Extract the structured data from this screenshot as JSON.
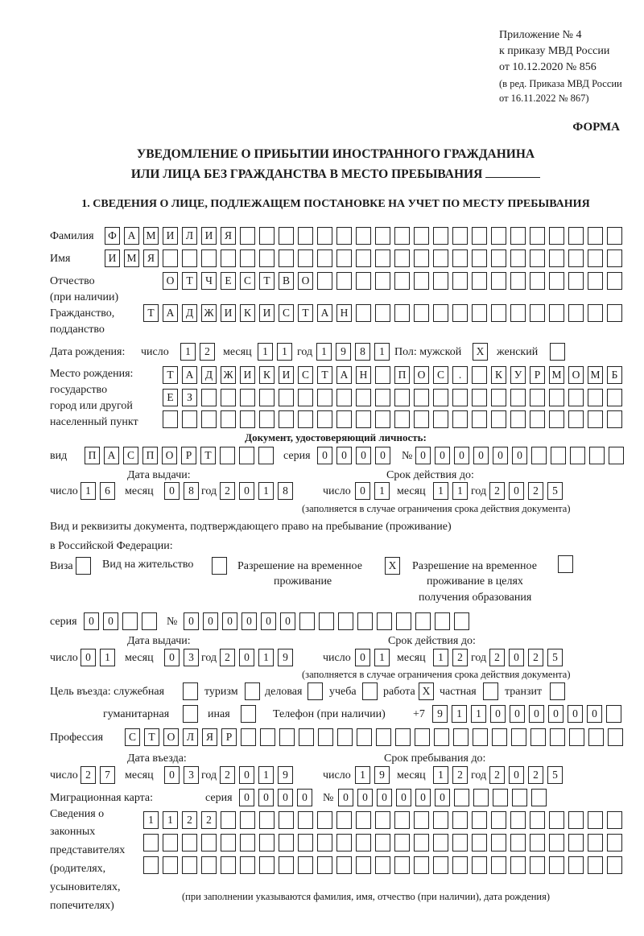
{
  "header": {
    "appendix": "Приложение № 4",
    "order": "к приказу МВД России",
    "order_date": "от 10.12.2020 № 856",
    "revision1": "(в ред. Приказа МВД России",
    "revision2": "от 16.11.2022 № 867)",
    "form": "ФОРМА",
    "title1": "УВЕДОМЛЕНИЕ О ПРИБЫТИИ ИНОСТРАННОГО ГРАЖДАНИНА",
    "title2": "ИЛИ ЛИЦА БЕЗ ГРАЖДАНСТВА В МЕСТО ПРЕБЫВАНИЯ",
    "section1": "1. СВЕДЕНИЯ О ЛИЦЕ, ПОДЛЕЖАЩЕМ ПОСТАНОВКЕ НА УЧЕТ ПО МЕСТУ ПРЕБЫВАНИЯ"
  },
  "labels": {
    "surname": "Фамилия",
    "name": "Имя",
    "patronymic": "Отчество",
    "if_any": "(при наличии)",
    "citizenship": "Гражданство,",
    "subject": "подданство",
    "birth_date": "Дата рождения:",
    "day": "число",
    "month": "месяц",
    "year": "год",
    "sex_male": "Пол: мужской",
    "sex_female": "женский",
    "birth_place": "Место рождения:",
    "state": "государство",
    "city": "город или другой",
    "settlement": "населенный пункт",
    "id_doc": "Документ, удостоверяющий личность:",
    "kind": "вид",
    "series": "серия",
    "number": "№",
    "issue_date": "Дата выдачи:",
    "valid_until": "Срок действия до:",
    "validity_note": "(заполняется в случае ограничения срока действия документа)",
    "residence_doc1": "Вид и реквизиты документа, подтверждающего право на пребывание (проживание)",
    "residence_doc2": "в Российской Федерации:",
    "visa": "Виза",
    "residence_permit": "Вид на жительство",
    "temp_permit1": "Разрешение на временное",
    "temp_permit2": "проживание",
    "edu_permit1": "Разрешение на временное",
    "edu_permit2": "проживание в целях",
    "edu_permit3": "получения образования",
    "purpose": "Цель въезда: служебная",
    "tourism": "туризм",
    "business": "деловая",
    "study": "учеба",
    "work": "работа",
    "private": "частная",
    "transit": "транзит",
    "humanitarian": "гуманитарная",
    "other": "иная",
    "phone": "Телефон (при наличии)",
    "phone_prefix": "+7",
    "profession": "Профессия",
    "entry_date": "Дата въезда:",
    "stay_until": "Срок пребывания до:",
    "migration_card": "Миграционная карта:",
    "reps1": "Сведения о",
    "reps2": "законных",
    "reps3": "представителях",
    "reps4": "(родителях,",
    "reps5": "усыновителях,",
    "reps6": "попечителях)",
    "reps_note": "(при заполнении указываются фамилия, имя, отчество (при наличии), дата рождения)"
  },
  "fields": {
    "surname": [
      "Ф",
      "А",
      "М",
      "И",
      "Л",
      "И",
      "Я",
      "",
      "",
      "",
      "",
      "",
      "",
      "",
      "",
      "",
      "",
      "",
      "",
      "",
      "",
      "",
      "",
      "",
      "",
      "",
      ""
    ],
    "name": [
      "И",
      "М",
      "Я",
      "",
      "",
      "",
      "",
      "",
      "",
      "",
      "",
      "",
      "",
      "",
      "",
      "",
      "",
      "",
      "",
      "",
      "",
      "",
      "",
      "",
      "",
      "",
      ""
    ],
    "patronymic": [
      "О",
      "Т",
      "Ч",
      "Е",
      "С",
      "Т",
      "В",
      "О",
      "",
      "",
      "",
      "",
      "",
      "",
      "",
      "",
      "",
      "",
      "",
      "",
      "",
      "",
      "",
      ""
    ],
    "citizenship": [
      "Т",
      "А",
      "Д",
      "Ж",
      "И",
      "К",
      "И",
      "С",
      "Т",
      "А",
      "Н",
      "",
      "",
      "",
      "",
      "",
      "",
      "",
      "",
      "",
      "",
      "",
      "",
      "",
      ""
    ],
    "birth_day": [
      "1",
      "2"
    ],
    "birth_month": [
      "1",
      "1"
    ],
    "birth_year": [
      "1",
      "9",
      "8",
      "1"
    ],
    "sex_male": "X",
    "sex_female": "",
    "birth_place_1": [
      "Т",
      "А",
      "Д",
      "Ж",
      "И",
      "К",
      "И",
      "С",
      "Т",
      "А",
      "Н",
      "",
      "П",
      "О",
      "С",
      ".",
      "",
      "К",
      "У",
      "Р",
      "М",
      "О",
      "М",
      "Б"
    ],
    "birth_place_2": [
      "Е",
      "З",
      "",
      "",
      "",
      "",
      "",
      "",
      "",
      "",
      "",
      "",
      "",
      "",
      "",
      "",
      "",
      "",
      "",
      "",
      "",
      "",
      "",
      ""
    ],
    "birth_place_3": [
      "",
      "",
      "",
      "",
      "",
      "",
      "",
      "",
      "",
      "",
      "",
      "",
      "",
      "",
      "",
      "",
      "",
      "",
      "",
      "",
      "",
      "",
      "",
      ""
    ],
    "id_kind": [
      "П",
      "А",
      "С",
      "П",
      "О",
      "Р",
      "Т",
      "",
      "",
      ""
    ],
    "id_series": [
      "0",
      "0",
      "0",
      "0"
    ],
    "id_number": [
      "0",
      "0",
      "0",
      "0",
      "0",
      "0",
      "",
      "",
      "",
      "",
      ""
    ],
    "id_issue_day": [
      "1",
      "6"
    ],
    "id_issue_month": [
      "0",
      "8"
    ],
    "id_issue_year": [
      "2",
      "0",
      "1",
      "8"
    ],
    "id_valid_day": [
      "0",
      "1"
    ],
    "id_valid_month": [
      "1",
      "1"
    ],
    "id_valid_year": [
      "2",
      "0",
      "2",
      "5"
    ],
    "visa": "",
    "residence_permit": "",
    "temp_permit": "X",
    "edu_permit": "",
    "res_series": [
      "0",
      "0",
      "",
      ""
    ],
    "res_number": [
      "0",
      "0",
      "0",
      "0",
      "0",
      "0",
      "",
      "",
      "",
      "",
      "",
      "",
      "",
      "",
      ""
    ],
    "res_issue_day": [
      "0",
      "1"
    ],
    "res_issue_month": [
      "0",
      "3"
    ],
    "res_issue_year": [
      "2",
      "0",
      "1",
      "9"
    ],
    "res_valid_day": [
      "0",
      "1"
    ],
    "res_valid_month": [
      "1",
      "2"
    ],
    "res_valid_year": [
      "2",
      "0",
      "2",
      "5"
    ],
    "purpose_official": "",
    "purpose_tourism": "",
    "purpose_business": "",
    "purpose_study": "",
    "purpose_work": "X",
    "purpose_private": "",
    "purpose_transit": "",
    "purpose_humanitarian": "",
    "purpose_other": "",
    "phone": [
      "9",
      "1",
      "1",
      "0",
      "0",
      "0",
      "0",
      "0",
      "0",
      ""
    ],
    "profession": [
      "С",
      "Т",
      "О",
      "Л",
      "Я",
      "Р",
      "",
      "",
      "",
      "",
      "",
      "",
      "",
      "",
      "",
      "",
      "",
      "",
      "",
      "",
      "",
      "",
      "",
      "",
      "",
      ""
    ],
    "entry_day": [
      "2",
      "7"
    ],
    "entry_month": [
      "0",
      "3"
    ],
    "entry_year": [
      "2",
      "0",
      "1",
      "9"
    ],
    "stay_day": [
      "1",
      "9"
    ],
    "stay_month": [
      "1",
      "2"
    ],
    "stay_year": [
      "2",
      "0",
      "2",
      "5"
    ],
    "mig_series": [
      "0",
      "0",
      "0",
      "0"
    ],
    "mig_number": [
      "0",
      "0",
      "0",
      "0",
      "0",
      "0",
      "",
      "",
      "",
      "",
      ""
    ],
    "reps_1": [
      "1",
      "1",
      "2",
      "2",
      "",
      "",
      "",
      "",
      "",
      "",
      "",
      "",
      "",
      "",
      "",
      "",
      "",
      "",
      "",
      "",
      "",
      "",
      "",
      "",
      ""
    ],
    "reps_2": [
      "",
      "",
      "",
      "",
      "",
      "",
      "",
      "",
      "",
      "",
      "",
      "",
      "",
      "",
      "",
      "",
      "",
      "",
      "",
      "",
      "",
      "",
      "",
      "",
      ""
    ],
    "reps_3": [
      "",
      "",
      "",
      "",
      "",
      "",
      "",
      "",
      "",
      "",
      "",
      "",
      "",
      "",
      "",
      "",
      "",
      "",
      "",
      "",
      "",
      "",
      "",
      "",
      ""
    ]
  }
}
